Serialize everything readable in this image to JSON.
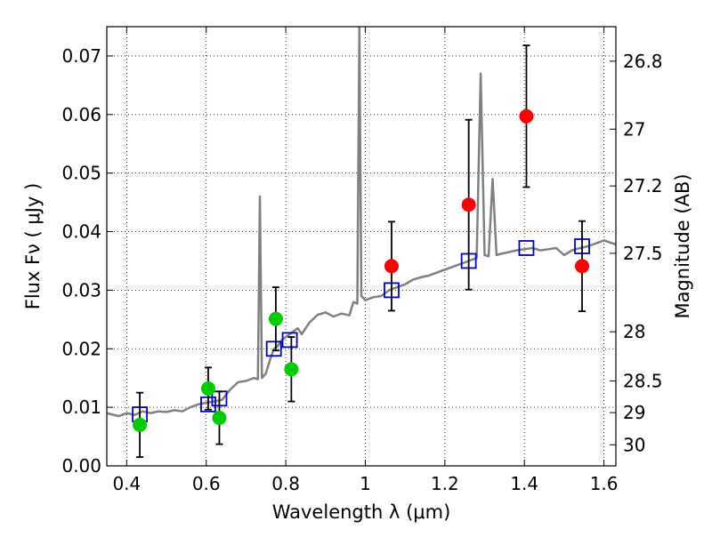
{
  "chart_data": {
    "type": "scatter",
    "xlabel": "Wavelength  λ (μm)",
    "ylabel": "Flux  Fν ( μJy )",
    "ylabel_right": "Magnitude (AB)",
    "xlim": [
      0.35,
      1.63
    ],
    "ylim": [
      0.0,
      0.075
    ],
    "grid": true,
    "x_ticks": [
      {
        "value": 0.4,
        "label": "0.4"
      },
      {
        "value": 0.6,
        "label": "0.6"
      },
      {
        "value": 0.8,
        "label": "0.8"
      },
      {
        "value": 1.0,
        "label": "1"
      },
      {
        "value": 1.2,
        "label": "1.2"
      },
      {
        "value": 1.4,
        "label": "1.4"
      },
      {
        "value": 1.6,
        "label": "1.6"
      }
    ],
    "y_ticks": [
      {
        "value": 0.0,
        "label": "0.00"
      },
      {
        "value": 0.01,
        "label": "0.01"
      },
      {
        "value": 0.02,
        "label": "0.02"
      },
      {
        "value": 0.03,
        "label": "0.03"
      },
      {
        "value": 0.04,
        "label": "0.04"
      },
      {
        "value": 0.05,
        "label": "0.05"
      },
      {
        "value": 0.06,
        "label": "0.06"
      },
      {
        "value": 0.07,
        "label": "0.07"
      }
    ],
    "right_ticks": [
      {
        "label": "26.8",
        "flux": 0.0691
      },
      {
        "label": "27",
        "flux": 0.0575
      },
      {
        "label": "27.2",
        "flux": 0.0478
      },
      {
        "label": "27.5",
        "flux": 0.0363
      },
      {
        "label": "28",
        "flux": 0.0229
      },
      {
        "label": "28.5",
        "flux": 0.0145
      },
      {
        "label": "29",
        "flux": 0.0091
      },
      {
        "label": "30",
        "flux": 0.0036
      }
    ],
    "series": [
      {
        "role": "model spectrum",
        "color": "#808080",
        "points": [
          [
            0.35,
            0.009
          ],
          [
            0.38,
            0.0085
          ],
          [
            0.4,
            0.009
          ],
          [
            0.42,
            0.0087
          ],
          [
            0.44,
            0.0093
          ],
          [
            0.46,
            0.009
          ],
          [
            0.48,
            0.0093
          ],
          [
            0.5,
            0.0092
          ],
          [
            0.52,
            0.0095
          ],
          [
            0.54,
            0.0093
          ],
          [
            0.56,
            0.01
          ],
          [
            0.58,
            0.0105
          ],
          [
            0.6,
            0.0108
          ],
          [
            0.62,
            0.011
          ],
          [
            0.64,
            0.0113
          ],
          [
            0.66,
            0.013
          ],
          [
            0.68,
            0.0143
          ],
          [
            0.7,
            0.0145
          ],
          [
            0.72,
            0.015
          ],
          [
            0.73,
            0.0148
          ],
          [
            0.735,
            0.046
          ],
          [
            0.74,
            0.015
          ],
          [
            0.75,
            0.0158
          ],
          [
            0.76,
            0.018
          ],
          [
            0.77,
            0.02
          ],
          [
            0.78,
            0.0205
          ],
          [
            0.79,
            0.0215
          ],
          [
            0.8,
            0.022
          ],
          [
            0.82,
            0.023
          ],
          [
            0.83,
            0.0235
          ],
          [
            0.84,
            0.0225
          ],
          [
            0.86,
            0.0245
          ],
          [
            0.88,
            0.0258
          ],
          [
            0.9,
            0.0262
          ],
          [
            0.92,
            0.0255
          ],
          [
            0.94,
            0.026
          ],
          [
            0.96,
            0.0257
          ],
          [
            0.97,
            0.028
          ],
          [
            0.98,
            0.0277
          ],
          [
            0.985,
            0.075
          ],
          [
            0.99,
            0.029
          ],
          [
            1.0,
            0.0283
          ],
          [
            1.02,
            0.0288
          ],
          [
            1.04,
            0.029
          ],
          [
            1.06,
            0.03
          ],
          [
            1.08,
            0.0305
          ],
          [
            1.1,
            0.031
          ],
          [
            1.12,
            0.0318
          ],
          [
            1.14,
            0.0322
          ],
          [
            1.16,
            0.0325
          ],
          [
            1.18,
            0.033
          ],
          [
            1.2,
            0.0335
          ],
          [
            1.22,
            0.034
          ],
          [
            1.24,
            0.0345
          ],
          [
            1.26,
            0.035
          ],
          [
            1.28,
            0.0355
          ],
          [
            1.29,
            0.067
          ],
          [
            1.3,
            0.036
          ],
          [
            1.31,
            0.0358
          ],
          [
            1.32,
            0.049
          ],
          [
            1.33,
            0.036
          ],
          [
            1.34,
            0.0362
          ],
          [
            1.36,
            0.0365
          ],
          [
            1.38,
            0.0368
          ],
          [
            1.4,
            0.037
          ],
          [
            1.42,
            0.0372
          ],
          [
            1.44,
            0.0368
          ],
          [
            1.46,
            0.037
          ],
          [
            1.48,
            0.0372
          ],
          [
            1.5,
            0.036
          ],
          [
            1.52,
            0.0368
          ],
          [
            1.54,
            0.0372
          ],
          [
            1.56,
            0.0375
          ],
          [
            1.58,
            0.038
          ],
          [
            1.6,
            0.0385
          ],
          [
            1.63,
            0.0378
          ]
        ]
      },
      {
        "role": "model photometry",
        "color": "#0000cc",
        "points": [
          [
            0.433,
            0.0088
          ],
          [
            0.605,
            0.0105
          ],
          [
            0.633,
            0.0115
          ],
          [
            0.77,
            0.02
          ],
          [
            0.81,
            0.0215
          ],
          [
            1.066,
            0.03
          ],
          [
            1.26,
            0.035
          ],
          [
            1.405,
            0.0372
          ],
          [
            1.545,
            0.0375
          ]
        ]
      },
      {
        "role": "observed detections",
        "color": "#00cc00",
        "points": [
          {
            "x": 0.433,
            "y": 0.007,
            "err": 0.0055
          },
          {
            "x": 0.605,
            "y": 0.0132,
            "err": 0.0036
          },
          {
            "x": 0.633,
            "y": 0.0082,
            "err": 0.0045
          },
          {
            "x": 0.775,
            "y": 0.0251,
            "err": 0.0054
          },
          {
            "x": 0.814,
            "y": 0.0165,
            "err": 0.0055
          }
        ]
      },
      {
        "role": "observed near-infrared",
        "color": "#ff0000",
        "points": [
          {
            "x": 1.066,
            "y": 0.0341,
            "err": 0.0076
          },
          {
            "x": 1.26,
            "y": 0.0446,
            "err": 0.0145
          },
          {
            "x": 1.405,
            "y": 0.0597,
            "err": 0.0121
          },
          {
            "x": 1.545,
            "y": 0.0341,
            "err": 0.0077
          }
        ]
      }
    ]
  }
}
